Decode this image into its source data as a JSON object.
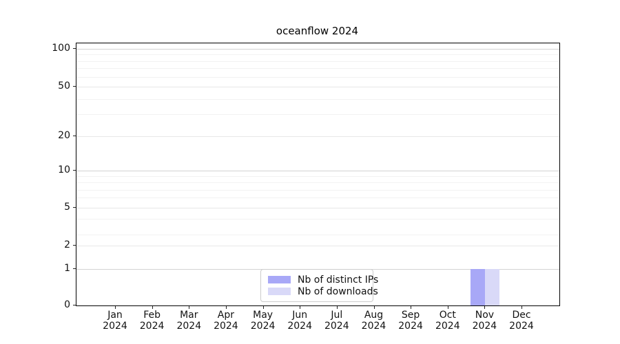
{
  "title": "oceanflow 2024",
  "chart_data": {
    "type": "bar",
    "title": "oceanflow 2024",
    "xlabel": "",
    "ylabel": "",
    "yscale": "symlog",
    "grid": "horizontal",
    "y_ticks": [
      0,
      1,
      2,
      5,
      10,
      20,
      50,
      100
    ],
    "y_major_gridlines": [
      1,
      10,
      100
    ],
    "ylim": [
      0,
      115
    ],
    "categories": [
      "Jan 2024",
      "Feb 2024",
      "Mar 2024",
      "Apr 2024",
      "May 2024",
      "Jun 2024",
      "Jul 2024",
      "Aug 2024",
      "Sep 2024",
      "Oct 2024",
      "Nov 2024",
      "Dec 2024"
    ],
    "series": [
      {
        "name": "Nb of distinct IPs",
        "color": "#a8a8f7",
        "values": [
          0,
          0,
          0,
          0,
          0,
          0,
          0,
          0,
          0,
          0,
          1,
          0
        ]
      },
      {
        "name": "Nb of downloads",
        "color": "#d9d9f8",
        "values": [
          0,
          0,
          0,
          0,
          0,
          0,
          0,
          0,
          0,
          0,
          1,
          0
        ]
      }
    ],
    "legend_position": "lower center",
    "colors": {
      "axis_spine": "#000000",
      "major_grid": "#d2d2d2",
      "minor_grid": "#f2f2f2",
      "background": "#ffffff"
    }
  }
}
